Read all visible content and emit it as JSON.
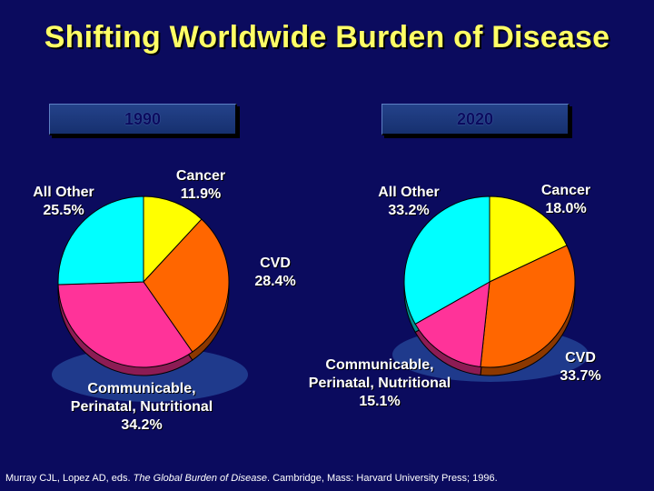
{
  "title": "Shifting Worldwide Burden of Disease",
  "chart_data": [
    {
      "type": "pie",
      "title": "1990",
      "categories": [
        "Cancer",
        "CVD",
        "Communicable, Perinatal, Nutritional",
        "All Other"
      ],
      "values": [
        11.9,
        28.4,
        34.2,
        25.5
      ],
      "colors": [
        "#ffff00",
        "#ff6600",
        "#ff3399",
        "#00ffff"
      ],
      "labels": {
        "cancer": [
          "Cancer",
          "11.9%"
        ],
        "cvd": [
          "CVD",
          "28.4%"
        ],
        "comm": [
          "Communicable,",
          "Perinatal, Nutritional",
          "34.2%"
        ],
        "other": [
          "All Other",
          "25.5%"
        ]
      }
    },
    {
      "type": "pie",
      "title": "2020",
      "categories": [
        "Cancer",
        "CVD",
        "Communicable, Perinatal, Nutritional",
        "All Other"
      ],
      "values": [
        18.0,
        33.7,
        15.1,
        33.2
      ],
      "colors": [
        "#ffff00",
        "#ff6600",
        "#ff3399",
        "#00ffff"
      ],
      "labels": {
        "cancer": [
          "Cancer",
          "18.0%"
        ],
        "cvd": [
          "CVD",
          "33.7%"
        ],
        "comm": [
          "Communicable,",
          "Perinatal, Nutritional",
          "15.1%"
        ],
        "other": [
          "All Other",
          "33.2%"
        ]
      }
    }
  ],
  "citation": {
    "pre": "Murray CJL, Lopez AD, eds. ",
    "italic": "The Global Burden of Disease",
    "post": ". Cambridge, Mass: Harvard University Press; 1996."
  }
}
